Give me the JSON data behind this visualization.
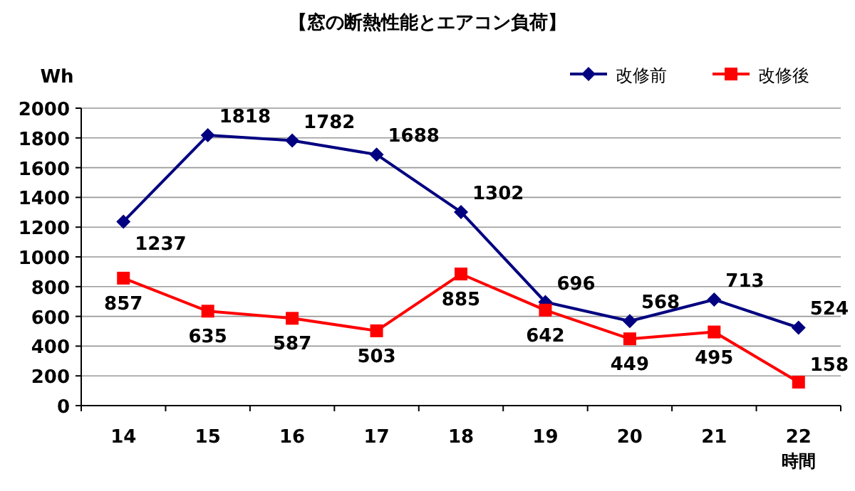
{
  "chart_data": {
    "type": "line",
    "title": "【窓の断熱性能とエアコン負荷】",
    "ylabel": "Wh",
    "xlabel": "時間",
    "categories": [
      "14",
      "15",
      "16",
      "17",
      "18",
      "19",
      "20",
      "21",
      "22"
    ],
    "series": [
      {
        "name": "改修前",
        "color": "#000080",
        "marker": "diamond",
        "values": [
          1237,
          1818,
          1782,
          1688,
          1302,
          696,
          568,
          713,
          524
        ]
      },
      {
        "name": "改修後",
        "color": "#ff0000",
        "marker": "square",
        "values": [
          857,
          635,
          587,
          503,
          885,
          642,
          449,
          495,
          158
        ]
      }
    ],
    "ylim": [
      0,
      2000
    ],
    "yticks": [
      0,
      200,
      400,
      600,
      800,
      1000,
      1200,
      1400,
      1600,
      1800,
      2000
    ],
    "grid": "y",
    "legend": "top right",
    "data_labels": true
  }
}
